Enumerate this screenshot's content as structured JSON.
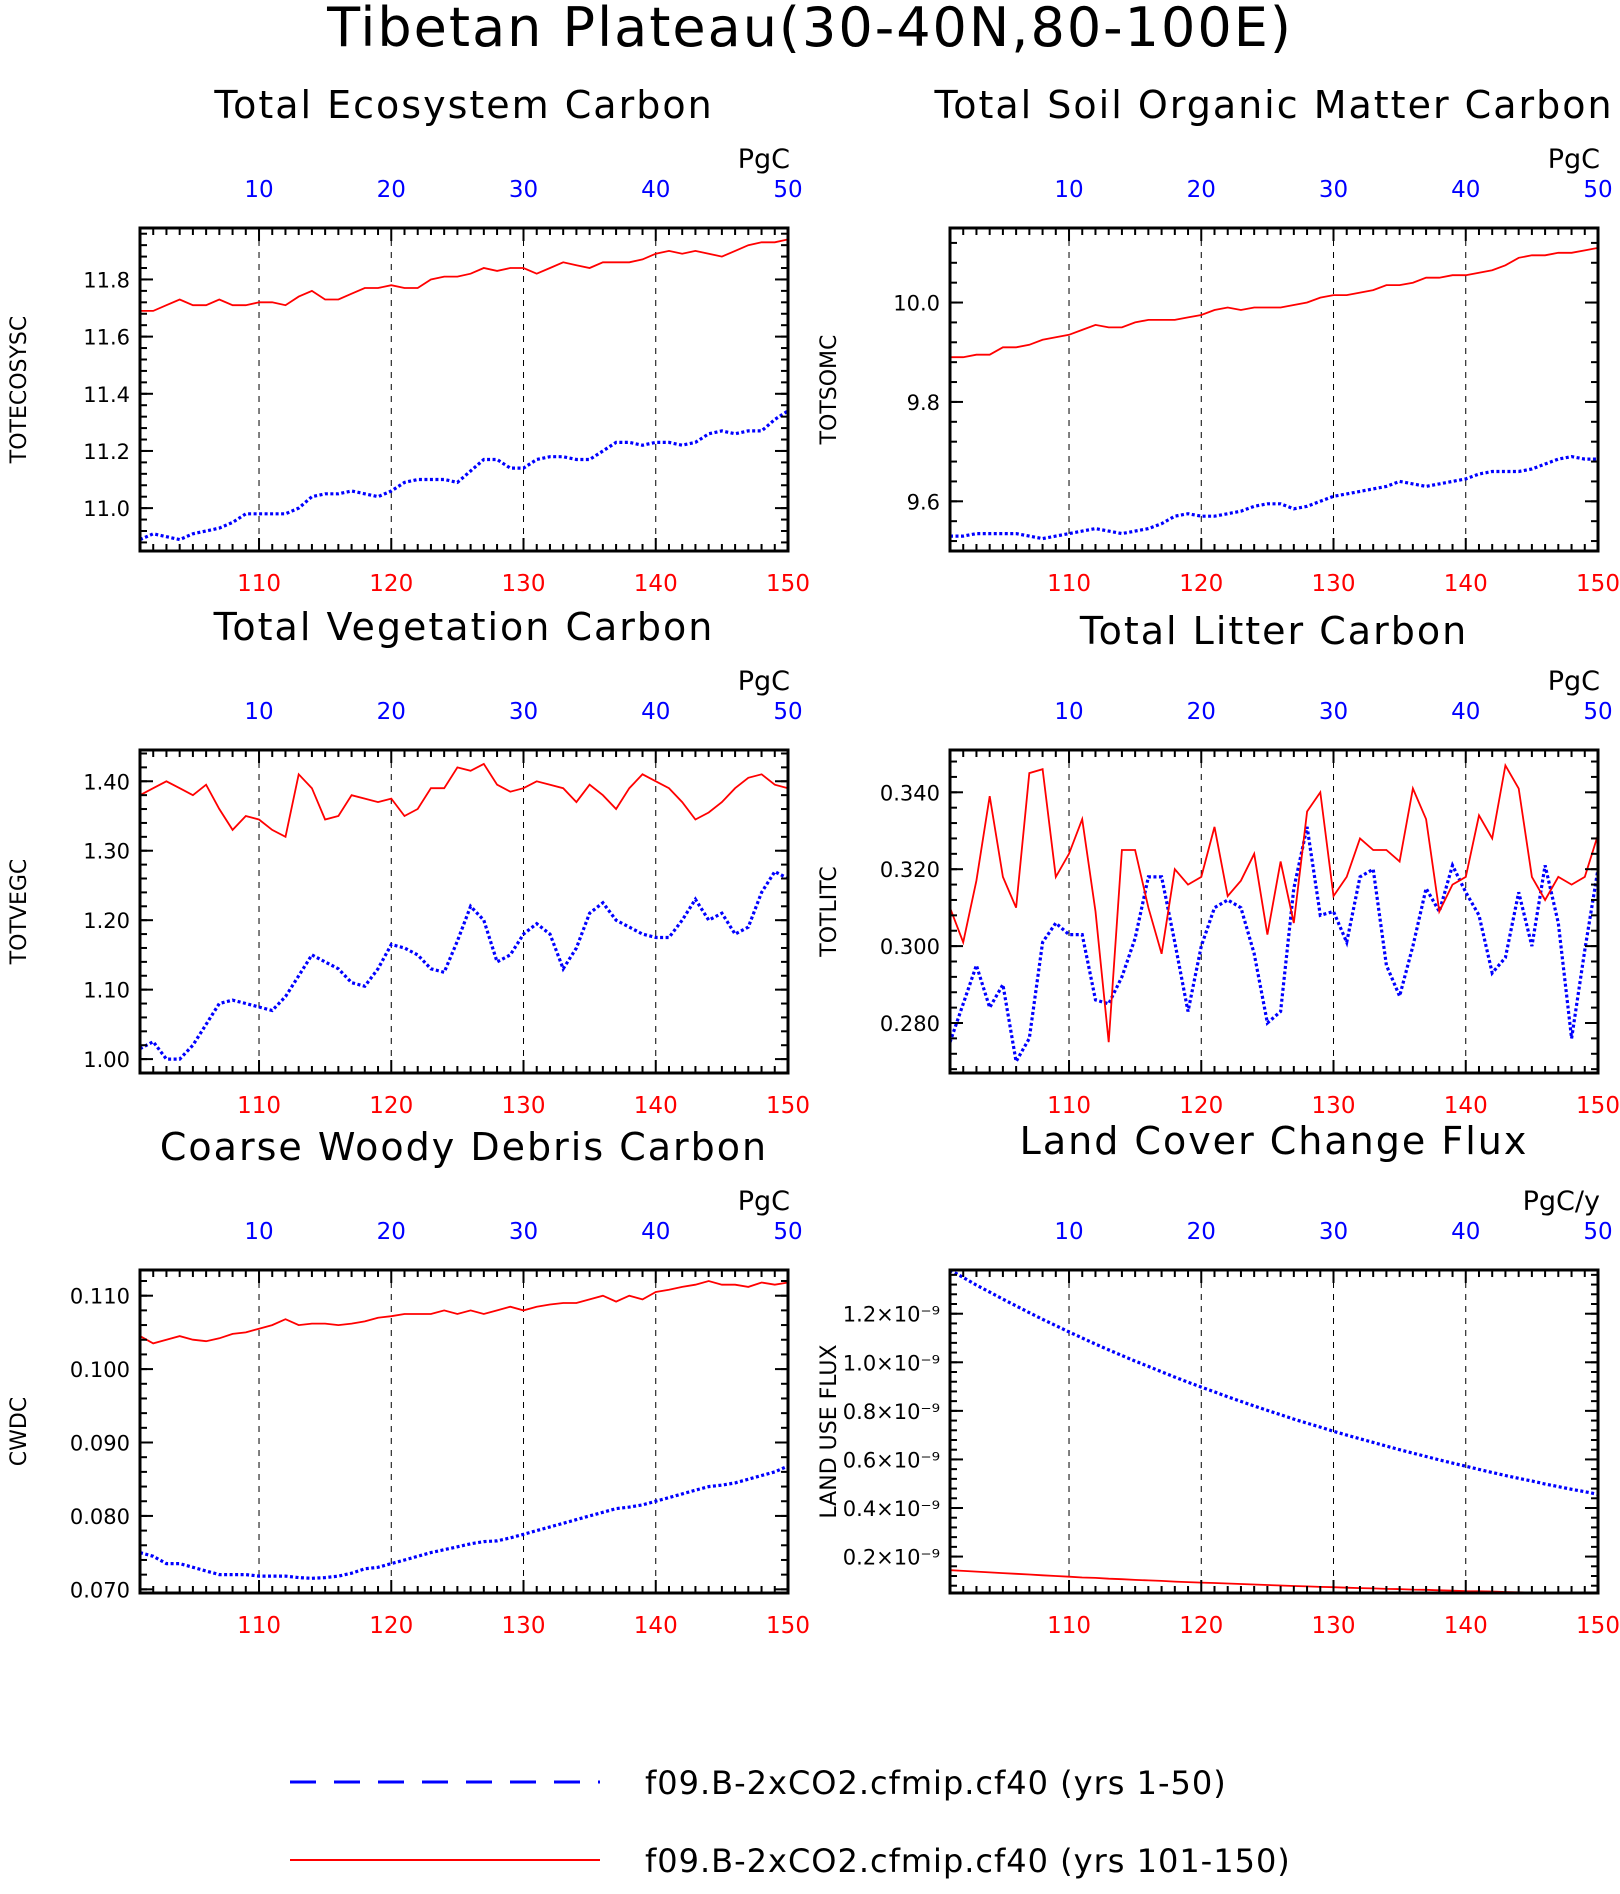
{
  "page_title": "Tibetan Plateau(30-40N,80-100E)",
  "legend": [
    {
      "label": "f09.B-2xCO2.cfmip.cf40 (yrs 1-50)",
      "color": "#0000ff",
      "style": "dashed"
    },
    {
      "label": "f09.B-2xCO2.cfmip.cf40 (yrs 101-150)",
      "color": "#ff0000",
      "style": "solid"
    }
  ],
  "chart_data": [
    {
      "type": "line",
      "title": "Total Ecosystem Carbon",
      "ylabel": "TOTECOSYSC",
      "units": "PgC",
      "bottom_axis": {
        "range": [
          101,
          150
        ],
        "ticks": [
          110,
          120,
          130,
          140,
          150
        ],
        "color": "#ff0000"
      },
      "top_axis": {
        "range": [
          1,
          50
        ],
        "ticks": [
          10,
          20,
          30,
          40,
          50
        ],
        "color": "#0000ff"
      },
      "ylim": [
        10.85,
        11.98
      ],
      "yticks": [
        11.0,
        11.2,
        11.4,
        11.6,
        11.8
      ],
      "ytick_labels": [
        "11.0",
        "11.2",
        "11.4",
        "11.6",
        "11.8"
      ],
      "grid": "vertical-dashed",
      "series": [
        {
          "color": "#0000ff",
          "style": "dotted",
          "values": [
            10.89,
            10.91,
            10.9,
            10.89,
            10.91,
            10.92,
            10.93,
            10.95,
            10.98,
            10.98,
            10.98,
            10.98,
            11,
            11.04,
            11.05,
            11.05,
            11.06,
            11.05,
            11.04,
            11.06,
            11.09,
            11.1,
            11.1,
            11.1,
            11.09,
            11.13,
            11.17,
            11.17,
            11.14,
            11.14,
            11.17,
            11.18,
            11.18,
            11.17,
            11.17,
            11.2,
            11.23,
            11.23,
            11.22,
            11.23,
            11.23,
            11.22,
            11.23,
            11.26,
            11.27,
            11.26,
            11.27,
            11.27,
            11.31,
            11.34
          ]
        },
        {
          "color": "#ff0000",
          "style": "solid",
          "values": [
            11.69,
            11.69,
            11.71,
            11.73,
            11.71,
            11.71,
            11.73,
            11.71,
            11.71,
            11.72,
            11.72,
            11.71,
            11.74,
            11.76,
            11.73,
            11.73,
            11.75,
            11.77,
            11.77,
            11.78,
            11.77,
            11.77,
            11.8,
            11.81,
            11.81,
            11.82,
            11.84,
            11.83,
            11.84,
            11.84,
            11.82,
            11.84,
            11.86,
            11.85,
            11.84,
            11.86,
            11.86,
            11.86,
            11.87,
            11.89,
            11.9,
            11.89,
            11.9,
            11.89,
            11.88,
            11.9,
            11.92,
            11.93,
            11.93,
            11.94
          ]
        }
      ]
    },
    {
      "type": "line",
      "title": "Total Soil Organic Matter Carbon",
      "ylabel": "TOTSOMC",
      "units": "PgC",
      "bottom_axis": {
        "range": [
          101,
          150
        ],
        "ticks": [
          110,
          120,
          130,
          140,
          150
        ],
        "color": "#ff0000"
      },
      "top_axis": {
        "range": [
          1,
          50
        ],
        "ticks": [
          10,
          20,
          30,
          40,
          50
        ],
        "color": "#0000ff"
      },
      "ylim": [
        9.5,
        10.15
      ],
      "yticks": [
        9.6,
        9.8,
        10.0
      ],
      "ytick_labels": [
        "9.6",
        "9.8",
        "10.0"
      ],
      "grid": "vertical-dashed",
      "series": [
        {
          "color": "#0000ff",
          "style": "dotted",
          "values": [
            9.53,
            9.53,
            9.535,
            9.535,
            9.535,
            9.535,
            9.53,
            9.525,
            9.53,
            9.535,
            9.54,
            9.545,
            9.54,
            9.535,
            9.54,
            9.545,
            9.555,
            9.57,
            9.575,
            9.57,
            9.57,
            9.575,
            9.58,
            9.59,
            9.595,
            9.595,
            9.585,
            9.59,
            9.6,
            9.61,
            9.615,
            9.62,
            9.625,
            9.63,
            9.64,
            9.635,
            9.63,
            9.635,
            9.64,
            9.645,
            9.655,
            9.66,
            9.66,
            9.66,
            9.665,
            9.675,
            9.685,
            9.69,
            9.685,
            9.685
          ]
        },
        {
          "color": "#ff0000",
          "style": "solid",
          "values": [
            9.89,
            9.89,
            9.895,
            9.895,
            9.91,
            9.91,
            9.915,
            9.925,
            9.93,
            9.935,
            9.945,
            9.955,
            9.95,
            9.95,
            9.96,
            9.965,
            9.965,
            9.965,
            9.97,
            9.975,
            9.985,
            9.99,
            9.985,
            9.99,
            9.99,
            9.99,
            9.995,
            10.0,
            10.01,
            10.015,
            10.015,
            10.02,
            10.025,
            10.035,
            10.035,
            10.04,
            10.05,
            10.05,
            10.055,
            10.055,
            10.06,
            10.065,
            10.075,
            10.09,
            10.095,
            10.095,
            10.1,
            10.1,
            10.105,
            10.11
          ]
        }
      ]
    },
    {
      "type": "line",
      "title": "Total Vegetation Carbon",
      "ylabel": "TOTVEGC",
      "units": "PgC",
      "bottom_axis": {
        "range": [
          101,
          150
        ],
        "ticks": [
          110,
          120,
          130,
          140,
          150
        ],
        "color": "#ff0000"
      },
      "top_axis": {
        "range": [
          1,
          50
        ],
        "ticks": [
          10,
          20,
          30,
          40,
          50
        ],
        "color": "#0000ff"
      },
      "ylim": [
        0.98,
        1.445
      ],
      "yticks": [
        1.0,
        1.1,
        1.2,
        1.3,
        1.4
      ],
      "ytick_labels": [
        "1.00",
        "1.10",
        "1.20",
        "1.30",
        "1.40"
      ],
      "grid": "vertical-dashed",
      "series": [
        {
          "color": "#0000ff",
          "style": "dotted",
          "values": [
            1.015,
            1.025,
            1.0,
            1.0,
            1.02,
            1.05,
            1.08,
            1.085,
            1.08,
            1.075,
            1.07,
            1.09,
            1.12,
            1.15,
            1.14,
            1.13,
            1.11,
            1.105,
            1.13,
            1.165,
            1.16,
            1.15,
            1.13,
            1.125,
            1.17,
            1.22,
            1.2,
            1.14,
            1.15,
            1.18,
            1.195,
            1.18,
            1.13,
            1.16,
            1.21,
            1.225,
            1.2,
            1.19,
            1.18,
            1.175,
            1.175,
            1.2,
            1.23,
            1.2,
            1.21,
            1.18,
            1.19,
            1.24,
            1.27,
            1.26
          ]
        },
        {
          "color": "#ff0000",
          "style": "solid",
          "values": [
            1.38,
            1.39,
            1.4,
            1.39,
            1.38,
            1.395,
            1.36,
            1.33,
            1.35,
            1.345,
            1.33,
            1.32,
            1.41,
            1.39,
            1.345,
            1.35,
            1.38,
            1.375,
            1.37,
            1.375,
            1.35,
            1.36,
            1.39,
            1.39,
            1.42,
            1.415,
            1.425,
            1.395,
            1.385,
            1.39,
            1.4,
            1.395,
            1.39,
            1.37,
            1.395,
            1.38,
            1.36,
            1.39,
            1.41,
            1.4,
            1.39,
            1.37,
            1.345,
            1.355,
            1.37,
            1.39,
            1.405,
            1.41,
            1.395,
            1.39
          ]
        }
      ]
    },
    {
      "type": "line",
      "title": "Total Litter Carbon",
      "ylabel": "TOTLITC",
      "units": "PgC",
      "bottom_axis": {
        "range": [
          101,
          150
        ],
        "ticks": [
          110,
          120,
          130,
          140,
          150
        ],
        "color": "#ff0000"
      },
      "top_axis": {
        "range": [
          1,
          50
        ],
        "ticks": [
          10,
          20,
          30,
          40,
          50
        ],
        "color": "#0000ff"
      },
      "ylim": [
        0.267,
        0.351
      ],
      "yticks": [
        0.28,
        0.3,
        0.32,
        0.34
      ],
      "ytick_labels": [
        "0.280",
        "0.300",
        "0.320",
        "0.340"
      ],
      "grid": "vertical-dashed",
      "series": [
        {
          "color": "#0000ff",
          "style": "dotted",
          "values": [
            0.275,
            0.285,
            0.295,
            0.284,
            0.29,
            0.27,
            0.276,
            0.301,
            0.306,
            0.303,
            0.303,
            0.286,
            0.285,
            0.292,
            0.302,
            0.318,
            0.318,
            0.301,
            0.283,
            0.3,
            0.31,
            0.312,
            0.31,
            0.298,
            0.28,
            0.283,
            0.315,
            0.331,
            0.308,
            0.309,
            0.301,
            0.318,
            0.32,
            0.295,
            0.287,
            0.3,
            0.315,
            0.309,
            0.321,
            0.314,
            0.308,
            0.293,
            0.297,
            0.314,
            0.3,
            0.321,
            0.306,
            0.276,
            0.299,
            0.32
          ]
        },
        {
          "color": "#ff0000",
          "style": "solid",
          "values": [
            0.31,
            0.301,
            0.317,
            0.339,
            0.318,
            0.31,
            0.345,
            0.346,
            0.318,
            0.324,
            0.333,
            0.309,
            0.275,
            0.325,
            0.325,
            0.31,
            0.298,
            0.32,
            0.316,
            0.318,
            0.331,
            0.313,
            0.317,
            0.324,
            0.303,
            0.322,
            0.306,
            0.335,
            0.34,
            0.313,
            0.318,
            0.328,
            0.325,
            0.325,
            0.322,
            0.341,
            0.333,
            0.309,
            0.316,
            0.318,
            0.334,
            0.328,
            0.347,
            0.341,
            0.318,
            0.312,
            0.318,
            0.316,
            0.318,
            0.329
          ]
        }
      ]
    },
    {
      "type": "line",
      "title": "Coarse Woody Debris Carbon",
      "ylabel": "CWDC",
      "units": "PgC",
      "bottom_axis": {
        "range": [
          101,
          150
        ],
        "ticks": [
          110,
          120,
          130,
          140,
          150
        ],
        "color": "#ff0000"
      },
      "top_axis": {
        "range": [
          1,
          50
        ],
        "ticks": [
          10,
          20,
          30,
          40,
          50
        ],
        "color": "#0000ff"
      },
      "ylim": [
        0.0695,
        0.1135
      ],
      "yticks": [
        0.07,
        0.08,
        0.09,
        0.1,
        0.11
      ],
      "ytick_labels": [
        "0.070",
        "0.080",
        "0.090",
        "0.100",
        "0.110"
      ],
      "grid": "vertical-dashed",
      "series": [
        {
          "color": "#0000ff",
          "style": "dotted",
          "values": [
            0.075,
            0.0745,
            0.0735,
            0.0735,
            0.073,
            0.0725,
            0.072,
            0.072,
            0.072,
            0.0718,
            0.0718,
            0.0718,
            0.0716,
            0.0715,
            0.0716,
            0.0718,
            0.0722,
            0.0728,
            0.073,
            0.0735,
            0.074,
            0.0745,
            0.075,
            0.0754,
            0.0758,
            0.0762,
            0.0765,
            0.0766,
            0.077,
            0.0775,
            0.078,
            0.0785,
            0.079,
            0.0795,
            0.08,
            0.0805,
            0.081,
            0.0812,
            0.0815,
            0.082,
            0.0825,
            0.083,
            0.0835,
            0.084,
            0.0842,
            0.0845,
            0.085,
            0.0855,
            0.086,
            0.0868
          ]
        },
        {
          "color": "#ff0000",
          "style": "solid",
          "values": [
            0.1045,
            0.1035,
            0.104,
            0.1045,
            0.104,
            0.1038,
            0.1042,
            0.1048,
            0.105,
            0.1055,
            0.106,
            0.1068,
            0.106,
            0.1062,
            0.1062,
            0.106,
            0.1062,
            0.1065,
            0.107,
            0.1072,
            0.1075,
            0.1075,
            0.1075,
            0.108,
            0.1075,
            0.108,
            0.1075,
            0.108,
            0.1085,
            0.108,
            0.1085,
            0.1088,
            0.109,
            0.109,
            0.1095,
            0.11,
            0.1092,
            0.11,
            0.1095,
            0.1105,
            0.1108,
            0.1112,
            0.1115,
            0.112,
            0.1115,
            0.1115,
            0.1112,
            0.1118,
            0.1115,
            0.1118
          ]
        }
      ]
    },
    {
      "type": "line",
      "title": "Land Cover Change Flux",
      "ylabel": "LAND USE FLUX",
      "units": "PgC/y",
      "bottom_axis": {
        "range": [
          101,
          150
        ],
        "ticks": [
          110,
          120,
          130,
          140,
          150
        ],
        "color": "#ff0000"
      },
      "top_axis": {
        "range": [
          1,
          50
        ],
        "ticks": [
          10,
          20,
          30,
          40,
          50
        ],
        "color": "#0000ff"
      },
      "ylim": [
        5e-11,
        1.38e-09
      ],
      "yticks": [
        2e-10,
        4e-10,
        6e-10,
        8e-10,
        1e-09,
        1.2e-09
      ],
      "ytick_labels": [
        "0.2×10⁻⁹",
        "0.4×10⁻⁹",
        "0.6×10⁻⁹",
        "0.8×10⁻⁹",
        "1.0×10⁻⁹",
        "1.2×10⁻⁹"
      ],
      "grid": "vertical-dashed",
      "series": [
        {
          "color": "#0000ff",
          "style": "dotted",
          "values": [
            1.38e-09,
            1.349e-09,
            1.318e-09,
            1.289e-09,
            1.26e-09,
            1.232e-09,
            1.204e-09,
            1.177e-09,
            1.151e-09,
            1.125e-09,
            1.1e-09,
            1.075e-09,
            1.051e-09,
            1.028e-09,
            1.005e-09,
            9.83e-10,
            9.61e-10,
            9.39e-10,
            9.18e-10,
            8.98e-10,
            8.78e-10,
            8.58e-10,
            8.39e-10,
            8.2e-10,
            8.02e-10,
            7.84e-10,
            7.66e-10,
            7.49e-10,
            7.33e-10,
            7.16e-10,
            7e-10,
            6.85e-10,
            6.7e-10,
            6.55e-10,
            6.4e-10,
            6.26e-10,
            6.12e-10,
            5.98e-10,
            5.85e-10,
            5.72e-10,
            5.59e-10,
            5.46e-10,
            5.34e-10,
            5.22e-10,
            5.11e-10,
            4.99e-10,
            4.88e-10,
            4.77e-10,
            4.67e-10,
            4.56e-10
          ]
        },
        {
          "color": "#ff0000",
          "style": "solid",
          "values": [
            1.44e-10,
            1.41e-10,
            1.38e-10,
            1.35e-10,
            1.32e-10,
            1.29e-10,
            1.26e-10,
            1.23e-10,
            1.2e-10,
            1.17e-10,
            1.14e-10,
            1.12e-10,
            1.09e-10,
            1.07e-10,
            1.04e-10,
            1.02e-10,
            1e-10,
            9.7e-11,
            9.5e-11,
            9.3e-11,
            9.1e-11,
            8.9e-11,
            8.7e-11,
            8.5e-11,
            8.3e-11,
            8.1e-11,
            7.9e-11,
            7.7e-11,
            7.5e-11,
            7.4e-11,
            7.2e-11,
            7e-11,
            6.9e-11,
            6.7e-11,
            6.6e-11,
            6.4e-11,
            6.3e-11,
            6.1e-11,
            6e-11,
            5.8e-11,
            5.7e-11,
            5.6e-11,
            5.4e-11,
            5.3e-11,
            5.2e-11,
            5.1e-11,
            5e-11,
            5e-11,
            5e-11,
            5e-11
          ]
        }
      ]
    }
  ]
}
